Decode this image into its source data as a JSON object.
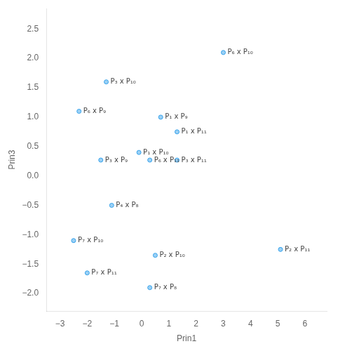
{
  "chart_data": {
    "type": "scatter",
    "x": [
      3.0,
      -1.3,
      -2.3,
      0.7,
      1.3,
      -0.1,
      -1.5,
      0.3,
      1.3,
      -1.1,
      -2.5,
      0.5,
      5.1,
      -2.0,
      0.3
    ],
    "values": [
      2.1,
      1.6,
      1.1,
      1.0,
      0.75,
      0.4,
      0.27,
      0.27,
      0.27,
      -0.5,
      -1.1,
      -1.35,
      -1.25,
      -1.65,
      -1.9
    ],
    "labels": [
      "P₆ x P₁₀",
      "P₃ x P₁₀",
      "P₆ x P₉",
      "P₁ x P₉",
      "P₁ x P₁₁",
      "P₁ x P₁₀",
      "P₃ x P₉",
      "P₆ x P₁₁",
      "P₃ x P₁₁",
      "P₄ x P₈",
      "P₇ x P₁₀",
      "P₂ x P₁₀",
      "P₂ x P₁₁",
      "P₇ x P₁₁",
      "P₇ x P₈"
    ],
    "x_label": "Prin1",
    "y_label": "Prin3",
    "xlim": [
      -3.5,
      6.8
    ],
    "ylim": [
      -2.3,
      2.85
    ],
    "xticks": [
      {
        "value": -3,
        "label": "−3"
      },
      {
        "value": -2,
        "label": "−2"
      },
      {
        "value": -1,
        "label": "−1"
      },
      0,
      1,
      2,
      3,
      4,
      5,
      6
    ],
    "yticks": [
      {
        "value": -2.0,
        "label": "−2.0"
      },
      {
        "value": -1.5,
        "label": "−1.5"
      },
      {
        "value": -1.0,
        "label": "−1.0"
      },
      {
        "value": -0.5,
        "label": "−0.5"
      },
      {
        "value": 0.0,
        "label": "0.0"
      },
      {
        "value": 0.5,
        "label": "0.5"
      },
      {
        "value": 1.0,
        "label": "1.0"
      },
      {
        "value": 1.5,
        "label": "1.5"
      },
      {
        "value": 2.0,
        "label": "2.0"
      },
      {
        "value": 2.5,
        "label": "2.5"
      }
    ],
    "grid": false
  }
}
